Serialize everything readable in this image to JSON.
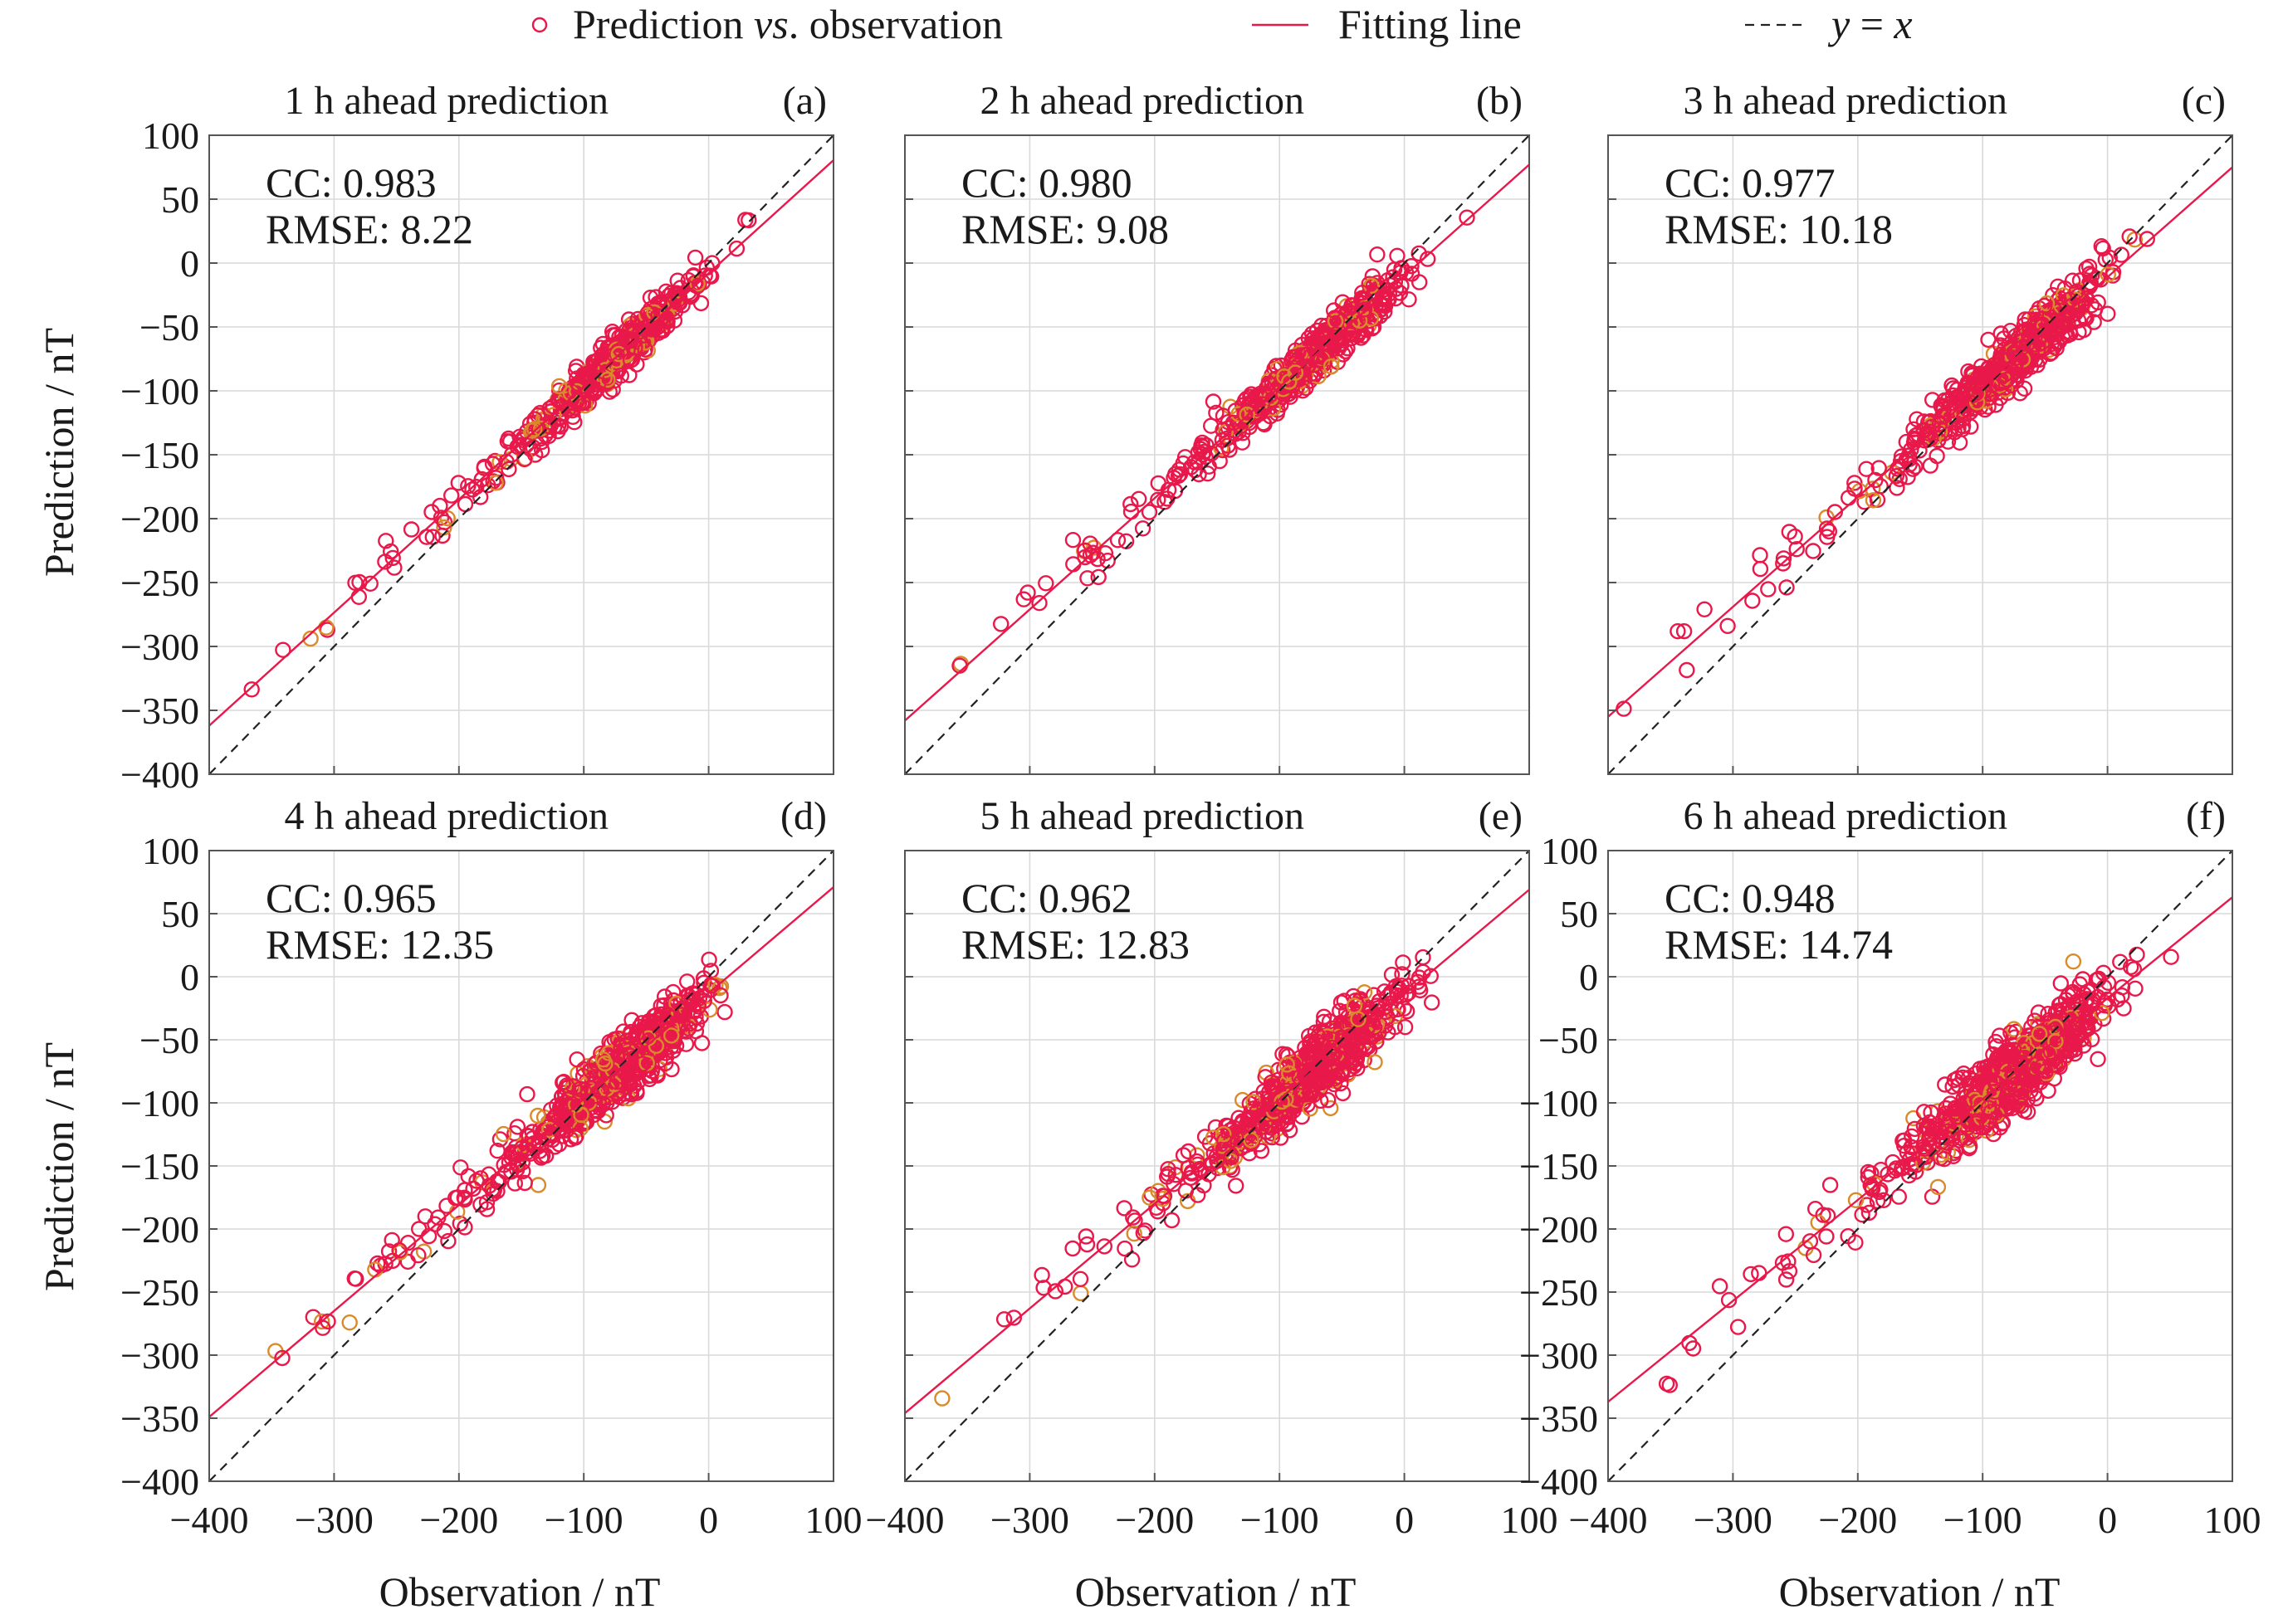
{
  "legend": {
    "items": [
      {
        "key": "points",
        "label": "Prediction vs. observation",
        "label_parts": [
          "Prediction ",
          "vs",
          ". observation"
        ]
      },
      {
        "key": "fit",
        "label": "Fitting line"
      },
      {
        "key": "ref",
        "label": "y = x",
        "label_parts": [
          "y",
          " = ",
          "x"
        ]
      }
    ]
  },
  "colors": {
    "points": "#e8194a",
    "points_edge": "#d98a2b",
    "fit": "#e8194a",
    "ref": "#222222"
  },
  "axes": {
    "xlabel": "Observation / nT",
    "ylabel": "Prediction / nT"
  },
  "chart_data": [
    {
      "type": "scatter",
      "title": "1 h ahead prediction",
      "letter": "(a)",
      "cc_text": "CC: 0.983",
      "rmse_text": "RMSE: 8.22",
      "cc": 0.983,
      "rmse": 8.22,
      "fit": {
        "slope": 0.885,
        "intercept": -8
      },
      "xlim": [
        -400,
        100
      ],
      "ylim": [
        -400,
        100
      ],
      "xticks": [
        -400,
        -300,
        -200,
        -100,
        0,
        100
      ],
      "yticks": [
        100,
        50,
        0,
        -50,
        -100,
        -150,
        -200,
        -250,
        -300,
        -350,
        -400
      ],
      "xtick_labels": [
        "−400",
        "−300",
        "−200",
        "−100",
        "0",
        "100"
      ],
      "ytick_labels": [
        "100",
        "50",
        "0",
        "−50",
        "−100",
        "−150",
        "−200",
        "−250",
        "−300",
        "−350",
        "−400"
      ],
      "grid": true
    },
    {
      "type": "scatter",
      "title": "2 h ahead prediction",
      "letter": "(b)",
      "cc_text": "CC: 0.980",
      "rmse_text": "RMSE: 9.08",
      "cc": 0.98,
      "rmse": 9.08,
      "fit": {
        "slope": 0.87,
        "intercept": -10
      },
      "xlim": [
        -400,
        100
      ],
      "ylim": [
        -400,
        100
      ],
      "xticks": [
        -400,
        -300,
        -200,
        -100,
        0,
        100
      ],
      "yticks": [
        100,
        50,
        0,
        -50,
        -100,
        -150,
        -200,
        -250,
        -300,
        -350,
        -400
      ],
      "xtick_labels": [
        "−400",
        "−300",
        "−200",
        "−100",
        "0",
        "100"
      ],
      "ytick_labels": [],
      "grid": true
    },
    {
      "type": "scatter",
      "title": "3 h ahead prediction",
      "letter": "(c)",
      "cc_text": "CC: 0.977",
      "rmse_text": "RMSE: 10.18",
      "cc": 0.977,
      "rmse": 10.18,
      "fit": {
        "slope": 0.86,
        "intercept": -11
      },
      "xlim": [
        -400,
        100
      ],
      "ylim": [
        -400,
        100
      ],
      "xticks": [
        -400,
        -300,
        -200,
        -100,
        0,
        100
      ],
      "yticks": [
        100,
        50,
        0,
        -50,
        -100,
        -150,
        -200,
        -250,
        -300,
        -350,
        -400
      ],
      "xtick_labels": [
        "−400",
        "−300",
        "−200",
        "−100",
        "0",
        "100"
      ],
      "ytick_labels": [],
      "grid": true
    },
    {
      "type": "scatter",
      "title": "4 h ahead prediction",
      "letter": "(d)",
      "cc_text": "CC: 0.965",
      "rmse_text": "RMSE: 12.35",
      "cc": 0.965,
      "rmse": 12.35,
      "fit": {
        "slope": 0.84,
        "intercept": -13
      },
      "xlim": [
        -400,
        100
      ],
      "ylim": [
        -400,
        100
      ],
      "xticks": [
        -400,
        -300,
        -200,
        -100,
        0,
        100
      ],
      "yticks": [
        100,
        50,
        0,
        -50,
        -100,
        -150,
        -200,
        -250,
        -300,
        -350,
        -400
      ],
      "xtick_labels": [
        "−400",
        "−300",
        "−200",
        "−100",
        "0",
        "100"
      ],
      "ytick_labels": [
        "100",
        "50",
        "0",
        "−50",
        "−100",
        "−150",
        "−200",
        "−250",
        "−300",
        "−350",
        "−400"
      ],
      "grid": true
    },
    {
      "type": "scatter",
      "title": "5 h ahead prediction",
      "letter": "(e)",
      "cc_text": "CC: 0.962",
      "rmse_text": "RMSE: 12.83",
      "cc": 0.962,
      "rmse": 12.83,
      "fit": {
        "slope": 0.83,
        "intercept": -14
      },
      "xlim": [
        -400,
        100
      ],
      "ylim": [
        -400,
        100
      ],
      "xticks": [
        -400,
        -300,
        -200,
        -100,
        0,
        100
      ],
      "yticks": [
        100,
        50,
        0,
        -50,
        -100,
        -150,
        -200,
        -250,
        -300,
        -350,
        -400
      ],
      "xtick_labels": [
        "−400",
        "−300",
        "−200",
        "−100",
        "0",
        "100"
      ],
      "ytick_labels": [],
      "grid": true
    },
    {
      "type": "scatter",
      "title": "6 h ahead prediction",
      "letter": "(f)",
      "cc_text": "CC: 0.948",
      "rmse_text": "RMSE: 14.74",
      "cc": 0.948,
      "rmse": 14.74,
      "fit": {
        "slope": 0.8,
        "intercept": -17
      },
      "xlim": [
        -400,
        100
      ],
      "ylim": [
        -400,
        100
      ],
      "xticks": [
        -400,
        -300,
        -200,
        -100,
        0,
        100
      ],
      "yticks": [
        100,
        50,
        0,
        -50,
        -100,
        -150,
        -200,
        -250,
        -300,
        -350,
        -400
      ],
      "xtick_labels": [
        "−400",
        "−300",
        "−200",
        "−100",
        "0",
        "100"
      ],
      "ytick_labels": [
        "100",
        "50",
        "0",
        "−50",
        "−100",
        "−150",
        "−200",
        "−250",
        "−300",
        "−350",
        "−400"
      ],
      "grid": true
    }
  ]
}
